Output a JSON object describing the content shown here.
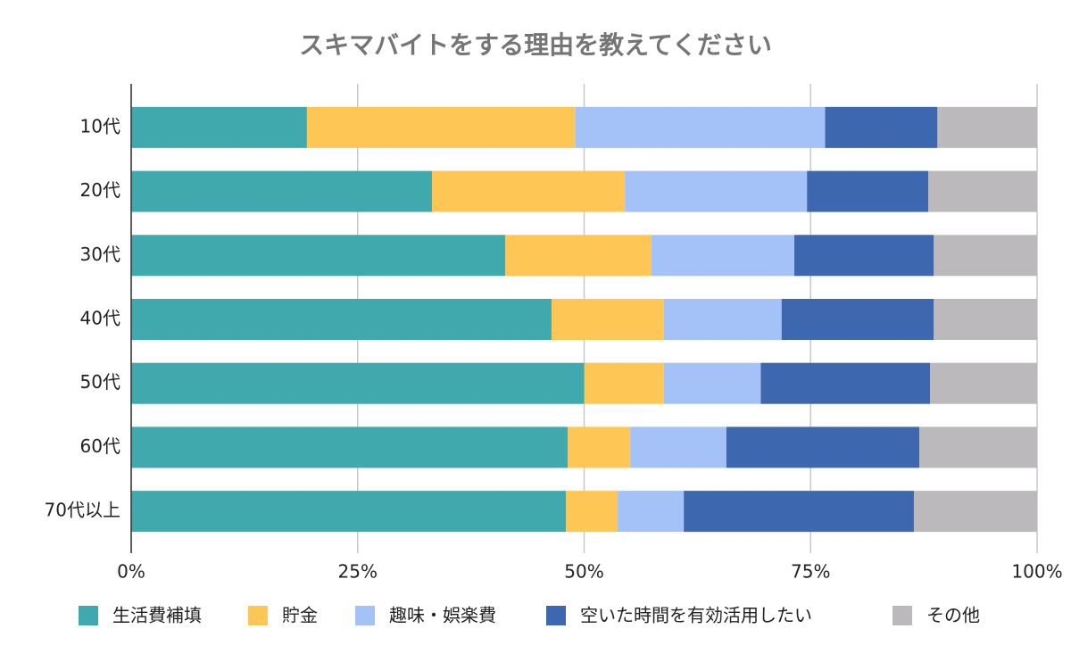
{
  "chart_data": {
    "type": "stacked-bar-horizontal",
    "title": "スキマバイトをする理由を教えてください",
    "categories": [
      "10代",
      "20代",
      "30代",
      "40代",
      "50代",
      "60代",
      "70代以上"
    ],
    "series": [
      {
        "name": "生活費補填",
        "color": "#3fa9ae",
        "values": [
          19.4,
          33.2,
          41.3,
          46.4,
          50.0,
          48.2,
          48.0
        ]
      },
      {
        "name": "貯金",
        "color": "#fec655",
        "values": [
          29.6,
          21.3,
          16.1,
          12.4,
          8.8,
          6.9,
          5.7
        ]
      },
      {
        "name": "趣味・娯楽費",
        "color": "#a4c2f7",
        "values": [
          27.6,
          20.1,
          15.8,
          13.0,
          10.7,
          10.6,
          7.3
        ]
      },
      {
        "name": "空いた時間を有効活用したい",
        "color": "#3d67ae",
        "values": [
          12.4,
          13.4,
          15.4,
          16.8,
          18.7,
          21.3,
          25.4
        ]
      },
      {
        "name": "その他",
        "color": "#bcb9bc",
        "values": [
          11.0,
          12.0,
          11.4,
          11.4,
          11.8,
          13.0,
          13.6
        ]
      }
    ],
    "xlim": [
      0,
      100
    ],
    "xticks": [
      {
        "value": 0,
        "label": "0%"
      },
      {
        "value": 25,
        "label": "25%"
      },
      {
        "value": 50,
        "label": "50%"
      },
      {
        "value": 75,
        "label": "75%"
      },
      {
        "value": 100,
        "label": "100%"
      }
    ],
    "grid": true,
    "legend": "bottom"
  }
}
